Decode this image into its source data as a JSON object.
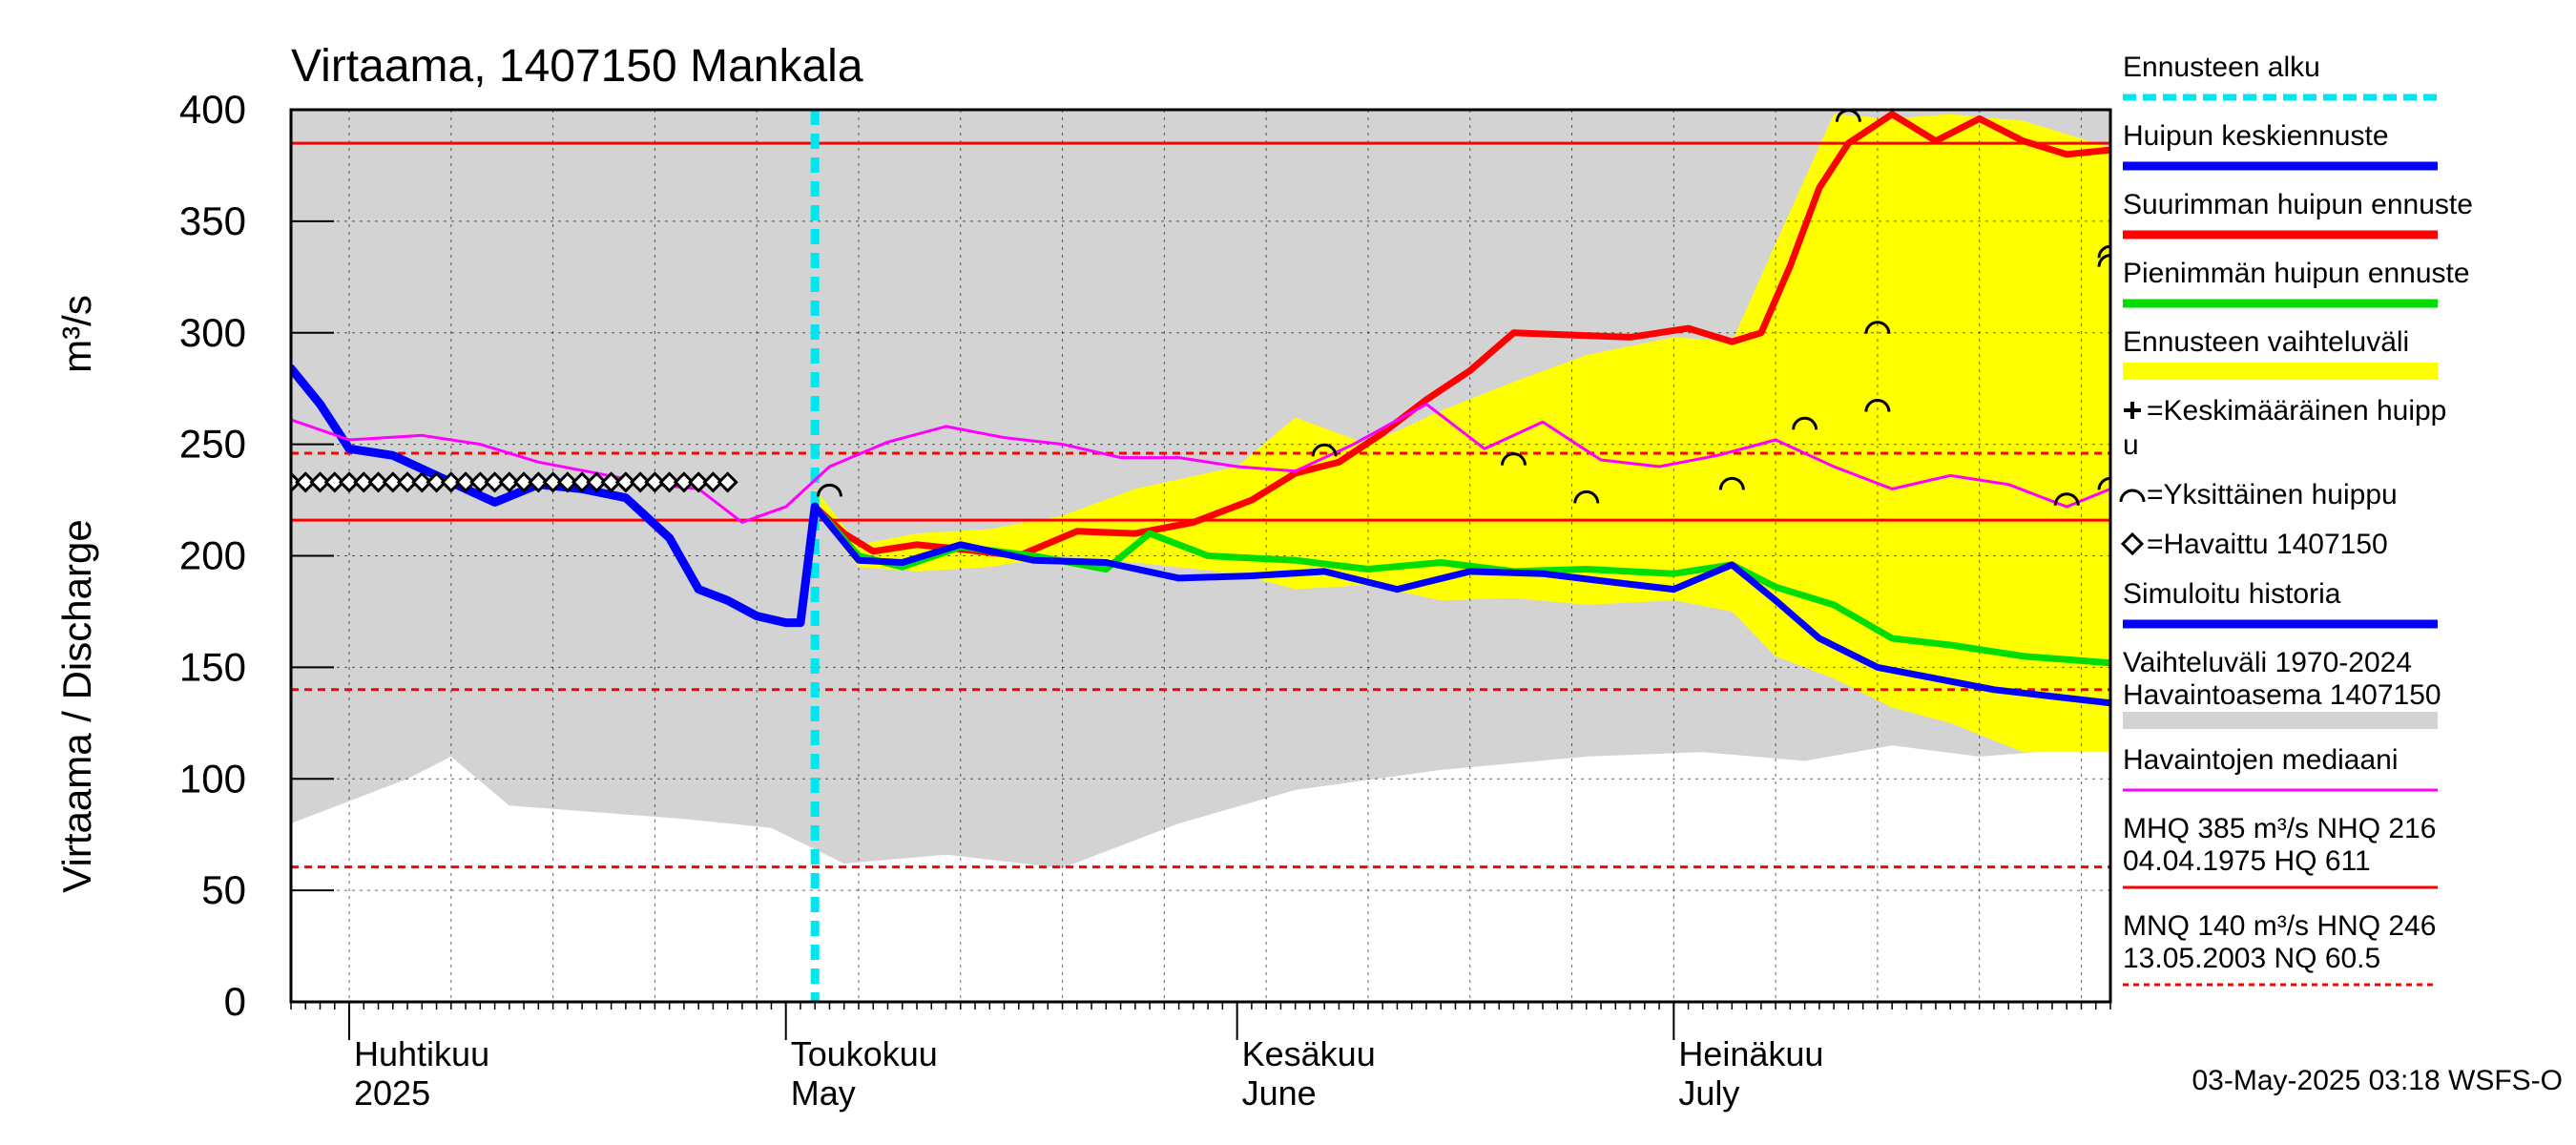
{
  "chart_data": {
    "type": "line",
    "title": "Virtaama, 1407150 Mankala",
    "ylabel": "Virtaama / Discharge",
    "yunit": "m³/s",
    "ylim": [
      0,
      400
    ],
    "yticks": [
      0,
      50,
      100,
      150,
      200,
      250,
      300,
      350,
      400
    ],
    "xlim": [
      "2025-03-28",
      "2025-07-31"
    ],
    "months": [
      {
        "name": "Huhtikuu",
        "sub": "2025",
        "date": "2025-04-01"
      },
      {
        "name": "Toukokuu",
        "sub": "May",
        "date": "2025-05-01"
      },
      {
        "name": "Kesäkuu",
        "sub": "June",
        "date": "2025-06-01"
      },
      {
        "name": "Heinäkuu",
        "sub": "July",
        "date": "2025-07-01"
      }
    ],
    "forecast_start": "2025-05-03",
    "reference_lines": [
      {
        "name": "MHQ",
        "value": 385,
        "style": "solid"
      },
      {
        "name": "NHQ",
        "value": 216,
        "style": "solid"
      },
      {
        "name": "HNQ",
        "value": 246,
        "style": "dashed"
      },
      {
        "name": "MNQ",
        "value": 140,
        "style": "dashed"
      },
      {
        "name": "NQ",
        "value": 60.5,
        "style": "dashed"
      }
    ],
    "history_band": {
      "x": [
        "2025-03-28",
        "2025-04-01",
        "2025-04-05",
        "2025-04-08",
        "2025-04-12",
        "2025-04-18",
        "2025-04-24",
        "2025-04-30",
        "2025-05-05",
        "2025-05-12",
        "2025-05-20",
        "2025-05-28",
        "2025-06-05",
        "2025-06-15",
        "2025-06-25",
        "2025-07-03",
        "2025-07-10",
        "2025-07-16",
        "2025-07-22",
        "2025-07-26",
        "2025-07-31"
      ],
      "lower": [
        80,
        90,
        100,
        110,
        88,
        85,
        82,
        78,
        62,
        66,
        60,
        80,
        95,
        104,
        110,
        112,
        108,
        115,
        110,
        112,
        115
      ],
      "upper": [
        400,
        400,
        400,
        400,
        400,
        400,
        400,
        400,
        400,
        400,
        400,
        400,
        400,
        400,
        400,
        400,
        400,
        400,
        400,
        400,
        400
      ]
    },
    "forecast_band": {
      "x": [
        "2025-05-03",
        "2025-05-06",
        "2025-05-10",
        "2025-05-15",
        "2025-05-20",
        "2025-05-25",
        "2025-06-01",
        "2025-06-05",
        "2025-06-10",
        "2025-06-15",
        "2025-06-20",
        "2025-06-25",
        "2025-07-01",
        "2025-07-05",
        "2025-07-08",
        "2025-07-12",
        "2025-07-16",
        "2025-07-20",
        "2025-07-25",
        "2025-07-31"
      ],
      "lower": [
        220,
        195,
        193,
        195,
        200,
        197,
        192,
        185,
        187,
        180,
        181,
        178,
        180,
        175,
        155,
        145,
        132,
        125,
        112,
        112
      ],
      "upper": [
        230,
        205,
        210,
        212,
        218,
        230,
        240,
        262,
        250,
        265,
        278,
        290,
        298,
        296,
        340,
        398,
        396,
        398,
        395,
        383
      ]
    },
    "series": [
      {
        "name": "Suurimman huipun ennuste",
        "color": "#ff0000",
        "x": [
          "2025-05-03",
          "2025-05-05",
          "2025-05-07",
          "2025-05-10",
          "2025-05-13",
          "2025-05-17",
          "2025-05-21",
          "2025-05-25",
          "2025-05-29",
          "2025-06-02",
          "2025-06-05",
          "2025-06-08",
          "2025-06-11",
          "2025-06-14",
          "2025-06-17",
          "2025-06-20",
          "2025-06-24",
          "2025-06-28",
          "2025-07-02",
          "2025-07-05",
          "2025-07-07",
          "2025-07-09",
          "2025-07-11",
          "2025-07-13",
          "2025-07-16",
          "2025-07-19",
          "2025-07-22",
          "2025-07-25",
          "2025-07-28",
          "2025-07-31"
        ],
        "y": [
          222,
          210,
          202,
          205,
          203,
          200,
          211,
          210,
          215,
          225,
          237,
          242,
          255,
          270,
          283,
          300,
          299,
          298,
          302,
          296,
          300,
          330,
          365,
          385,
          398,
          386,
          396,
          386,
          380,
          382
        ]
      },
      {
        "name": "Pienimmän huipun ennuste",
        "color": "#00dd00",
        "x": [
          "2025-05-03",
          "2025-05-06",
          "2025-05-09",
          "2025-05-13",
          "2025-05-18",
          "2025-05-23",
          "2025-05-26",
          "2025-05-30",
          "2025-06-05",
          "2025-06-10",
          "2025-06-15",
          "2025-06-20",
          "2025-06-25",
          "2025-07-01",
          "2025-07-05",
          "2025-07-08",
          "2025-07-12",
          "2025-07-16",
          "2025-07-20",
          "2025-07-25",
          "2025-07-31"
        ],
        "y": [
          222,
          200,
          195,
          204,
          200,
          194,
          210,
          200,
          198,
          194,
          197,
          193,
          194,
          192,
          196,
          186,
          178,
          163,
          160,
          155,
          152
        ]
      },
      {
        "name": "Huipun keskiennuste",
        "color": "#0000ff",
        "x": [
          "2025-05-03",
          "2025-05-06",
          "2025-05-09",
          "2025-05-13",
          "2025-05-18",
          "2025-05-23",
          "2025-05-28",
          "2025-06-02",
          "2025-06-07",
          "2025-06-12",
          "2025-06-17",
          "2025-06-22",
          "2025-06-27",
          "2025-07-01",
          "2025-07-05",
          "2025-07-08",
          "2025-07-11",
          "2025-07-15",
          "2025-07-19",
          "2025-07-23",
          "2025-07-27",
          "2025-07-31"
        ],
        "y": [
          222,
          198,
          197,
          205,
          198,
          197,
          190,
          191,
          193,
          185,
          193,
          192,
          188,
          185,
          196,
          180,
          163,
          150,
          145,
          140,
          137,
          134
        ]
      },
      {
        "name": "Simuloitu historia",
        "color": "#0000ff",
        "x": [
          "2025-03-28",
          "2025-03-30",
          "2025-04-01",
          "2025-04-04",
          "2025-04-08",
          "2025-04-11",
          "2025-04-14",
          "2025-04-17",
          "2025-04-20",
          "2025-04-23",
          "2025-04-25",
          "2025-04-27",
          "2025-04-29",
          "2025-05-01",
          "2025-05-02",
          "2025-05-03"
        ],
        "y": [
          284,
          268,
          248,
          245,
          233,
          224,
          232,
          230,
          226,
          208,
          185,
          180,
          173,
          170,
          170,
          222
        ]
      },
      {
        "name": "Havaintojen mediaani",
        "color": "#ff00ff",
        "x": [
          "2025-03-28",
          "2025-04-01",
          "2025-04-06",
          "2025-04-10",
          "2025-04-14",
          "2025-04-18",
          "2025-04-22",
          "2025-04-25",
          "2025-04-28",
          "2025-05-01",
          "2025-05-04",
          "2025-05-08",
          "2025-05-12",
          "2025-05-16",
          "2025-05-20",
          "2025-05-24",
          "2025-05-28",
          "2025-06-01",
          "2025-06-05",
          "2025-06-09",
          "2025-06-14",
          "2025-06-18",
          "2025-06-22",
          "2025-06-26",
          "2025-06-30",
          "2025-07-04",
          "2025-07-08",
          "2025-07-12",
          "2025-07-16",
          "2025-07-20",
          "2025-07-24",
          "2025-07-28",
          "2025-07-31"
        ],
        "y": [
          261,
          252,
          254,
          250,
          242,
          237,
          232,
          230,
          215,
          222,
          240,
          251,
          258,
          253,
          250,
          244,
          244,
          240,
          238,
          250,
          268,
          248,
          260,
          243,
          240,
          245,
          252,
          240,
          230,
          236,
          232,
          222,
          230
        ]
      },
      {
        "name": "Havaittu 1407150",
        "color": "#000000",
        "x": [
          "2025-03-28",
          "2025-04-27"
        ],
        "y": [
          233,
          233
        ]
      }
    ],
    "single_peaks": [
      {
        "x": "2025-05-04",
        "y": 230
      },
      {
        "x": "2025-06-07",
        "y": 248
      },
      {
        "x": "2025-06-20",
        "y": 244
      },
      {
        "x": "2025-06-25",
        "y": 227
      },
      {
        "x": "2025-07-05",
        "y": 233
      },
      {
        "x": "2025-07-10",
        "y": 260
      },
      {
        "x": "2025-07-15",
        "y": 268
      },
      {
        "x": "2025-07-15",
        "y": 303
      },
      {
        "x": "2025-07-13",
        "y": 398
      },
      {
        "x": "2025-07-28",
        "y": 226
      },
      {
        "x": "2025-07-31",
        "y": 233
      },
      {
        "x": "2025-07-31",
        "y": 333
      },
      {
        "x": "2025-07-31",
        "y": 337
      }
    ],
    "legend": [
      {
        "label": "Ennusteen alku",
        "color": "#00e5ee",
        "style": "dotted"
      },
      {
        "label": "Huipun keskiennuste",
        "color": "#0000ff",
        "style": "line"
      },
      {
        "label": "Suurimman huipun ennuste",
        "color": "#ff0000",
        "style": "line"
      },
      {
        "label": "Pienimmän huipun ennuste",
        "color": "#00dd00",
        "style": "line"
      },
      {
        "label": "Ennusteen vaihteluväli",
        "color": "#ffff00",
        "style": "band"
      },
      {
        "label": "=Keskimääräinen huipp",
        "label2": "u",
        "symbol": "plus"
      },
      {
        "label": "=Yksittäinen huippu",
        "symbol": "arc"
      },
      {
        "label": "=Havaittu 1407150",
        "symbol": "diamond"
      },
      {
        "label": "Simuloitu historia",
        "color": "#0000ff",
        "style": "line"
      },
      {
        "label": "Vaihteluväli 1970-2024",
        "label2": " Havaintoasema 1407150",
        "color": "#d3d3d3",
        "style": "band"
      },
      {
        "label": "Havaintojen mediaani",
        "color": "#ff00ff",
        "style": "thin"
      },
      {
        "label": "MHQ  385 m³/s NHQ  216",
        "label2": "04.04.1975 HQ  611",
        "color": "#ff0000",
        "style": "thin"
      },
      {
        "label": "MNQ  140 m³/s HNQ  246",
        "label2": "13.05.2003 NQ 60.5",
        "color": "#ff0000",
        "style": "dashed"
      }
    ],
    "footer": "03-May-2025 03:18 WSFS-O"
  }
}
